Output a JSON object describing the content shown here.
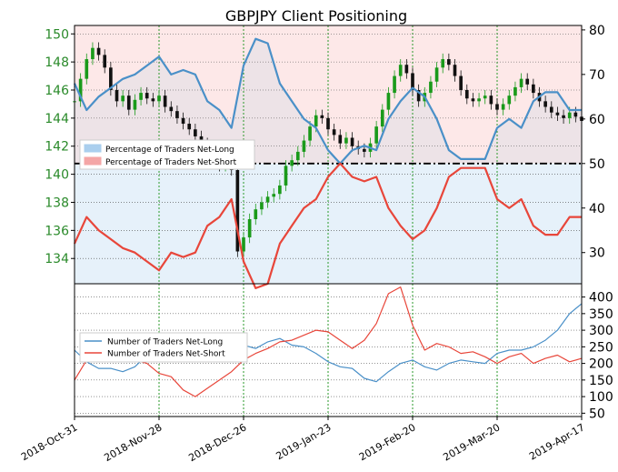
{
  "chart_data": [
    {
      "type": "line",
      "title": "GBPJPY Client Positioning",
      "x_dates": [
        "2018-Oct-31",
        "2018-Nov-28",
        "2018-Dec-26",
        "2019-Jan-23",
        "2019-Feb-20",
        "2019-Mar-20",
        "2019-Apr-17"
      ],
      "y_left": {
        "label": "",
        "ticks": [
          134,
          136,
          138,
          140,
          142,
          144,
          146,
          148,
          150
        ],
        "range": [
          132.2,
          150.6
        ]
      },
      "y_right": {
        "label": "",
        "ticks": [
          30,
          40,
          50,
          60,
          70,
          80
        ],
        "range": [
          23,
          81
        ]
      },
      "reference_line": {
        "value": 50,
        "axis": "right",
        "style": "dash-dot"
      },
      "grid": true,
      "legend": {
        "placement": "middle-left",
        "entries": [
          {
            "label": "Percentage of Traders Net-Long",
            "color": "#aacfee"
          },
          {
            "label": "Percentage of Traders Net-Short",
            "color": "#f4a6a6"
          }
        ]
      },
      "price_series": {
        "name": "",
        "kind": "candlestick",
        "x": [
          0,
          2,
          4,
          6,
          8,
          10,
          12,
          14,
          16,
          18,
          20,
          22,
          24,
          26,
          28,
          30,
          32,
          34,
          36,
          38,
          40,
          42,
          44,
          46,
          48,
          50,
          52,
          54,
          56,
          58,
          60,
          62,
          64,
          66,
          68,
          70,
          72,
          74,
          76,
          78,
          80,
          82,
          84,
          86,
          88,
          90,
          92,
          94,
          96,
          98,
          100,
          102,
          104,
          106,
          108,
          110,
          112,
          114,
          116,
          118,
          120,
          122,
          124,
          126,
          128,
          130,
          132,
          134,
          136,
          138,
          140,
          142,
          144,
          146,
          148,
          150,
          152,
          154,
          156,
          158,
          160,
          162,
          164,
          166,
          168
        ],
        "close": [
          145.2,
          146.8,
          148.2,
          149.0,
          148.5,
          147.6,
          146.0,
          145.2,
          145.6,
          144.6,
          145.3,
          145.8,
          145.4,
          145.2,
          145.6,
          144.8,
          144.5,
          144.0,
          143.6,
          143.2,
          142.7,
          142.2,
          141.6,
          141.0,
          140.6,
          140.9,
          140.3,
          134.5,
          135.5,
          136.8,
          137.5,
          138.0,
          138.4,
          138.6,
          139.2,
          140.6,
          141.0,
          141.6,
          142.4,
          143.4,
          144.2,
          144.0,
          143.2,
          142.8,
          142.2,
          142.6,
          142.0,
          141.8,
          141.6,
          142.2,
          143.4,
          144.6,
          145.8,
          147.0,
          147.8,
          147.2,
          146.0,
          145.2,
          145.8,
          146.6,
          147.6,
          148.2,
          147.8,
          147.0,
          146.0,
          145.4,
          145.2,
          145.4,
          145.6,
          145.0,
          144.6,
          145.0,
          145.6,
          146.2,
          146.8,
          146.4,
          145.8,
          145.2,
          144.8,
          144.4,
          144.2,
          144.0,
          144.4,
          144.1,
          143.8
        ],
        "ylim": [
          132.2,
          150.6
        ]
      },
      "series": [
        {
          "name": "Percentage of Traders Net-Long",
          "color": "#4a90c8",
          "x": [
            0,
            4,
            8,
            12,
            16,
            20,
            24,
            28,
            32,
            36,
            40,
            44,
            48,
            52,
            56,
            60,
            64,
            68,
            72,
            76,
            80,
            84,
            88,
            92,
            96,
            100,
            104,
            108,
            112,
            116,
            120,
            124,
            128,
            132,
            136,
            140,
            144,
            148,
            152,
            156,
            160,
            164,
            168
          ],
          "y": [
            68,
            62,
            65,
            67,
            69,
            70,
            72,
            74,
            70,
            71,
            70,
            64,
            62,
            58,
            72,
            78,
            77,
            68,
            64,
            60,
            58,
            53,
            50,
            53,
            54,
            53,
            60,
            64,
            67,
            65,
            60,
            53,
            51,
            51,
            51,
            58,
            60,
            58,
            64,
            66,
            66,
            62,
            62
          ]
        },
        {
          "name": "Percentage of Traders Net-Short",
          "color": "#e8463a",
          "x": [
            0,
            4,
            8,
            12,
            16,
            20,
            24,
            28,
            32,
            36,
            40,
            44,
            48,
            52,
            56,
            60,
            64,
            68,
            72,
            76,
            80,
            84,
            88,
            92,
            96,
            100,
            104,
            108,
            112,
            116,
            120,
            124,
            128,
            132,
            136,
            140,
            144,
            148,
            152,
            156,
            160,
            164,
            168
          ],
          "y": [
            32,
            38,
            35,
            33,
            31,
            30,
            28,
            26,
            30,
            29,
            30,
            36,
            38,
            42,
            28,
            22,
            23,
            32,
            36,
            40,
            42,
            47,
            50,
            47,
            46,
            47,
            40,
            36,
            33,
            35,
            40,
            47,
            49,
            49,
            49,
            42,
            40,
            42,
            36,
            34,
            34,
            38,
            38
          ]
        }
      ]
    },
    {
      "type": "line",
      "title": "",
      "y_right": {
        "label": "",
        "ticks": [
          50,
          100,
          150,
          200,
          250,
          300,
          350,
          400
        ],
        "range": [
          40,
          440
        ]
      },
      "grid": true,
      "legend": {
        "placement": "upper-left",
        "entries": [
          {
            "label": "Number of Traders Net-Long",
            "color": "#4a90c8"
          },
          {
            "label": "Number of Traders Net-Short",
            "color": "#e8463a"
          }
        ]
      },
      "series": [
        {
          "name": "Number of Traders Net-Long",
          "color": "#4a90c8",
          "x": [
            0,
            4,
            8,
            12,
            16,
            20,
            24,
            28,
            32,
            36,
            40,
            44,
            48,
            52,
            56,
            60,
            64,
            68,
            72,
            76,
            80,
            84,
            88,
            92,
            96,
            100,
            104,
            108,
            112,
            116,
            120,
            124,
            128,
            132,
            136,
            140,
            144,
            148,
            152,
            156,
            160,
            164,
            168
          ],
          "y": [
            240,
            205,
            185,
            185,
            175,
            190,
            225,
            240,
            260,
            250,
            230,
            230,
            260,
            280,
            255,
            245,
            265,
            275,
            255,
            250,
            230,
            205,
            190,
            185,
            155,
            145,
            175,
            200,
            210,
            190,
            180,
            200,
            210,
            205,
            200,
            230,
            240,
            240,
            250,
            270,
            300,
            350,
            380
          ]
        },
        {
          "name": "Number of Traders Net-Short",
          "color": "#e8463a",
          "x": [
            0,
            4,
            8,
            12,
            16,
            20,
            24,
            28,
            32,
            36,
            40,
            44,
            48,
            52,
            56,
            60,
            64,
            68,
            72,
            76,
            80,
            84,
            88,
            92,
            96,
            100,
            104,
            108,
            112,
            116,
            120,
            124,
            128,
            132,
            136,
            140,
            144,
            148,
            152,
            156,
            160,
            164,
            168
          ],
          "y": [
            150,
            210,
            250,
            270,
            265,
            210,
            200,
            170,
            160,
            120,
            100,
            125,
            150,
            175,
            210,
            230,
            245,
            265,
            270,
            285,
            300,
            295,
            270,
            245,
            270,
            320,
            410,
            430,
            315,
            240,
            260,
            250,
            230,
            235,
            220,
            200,
            220,
            230,
            200,
            215,
            225,
            205,
            215
          ]
        }
      ]
    }
  ]
}
